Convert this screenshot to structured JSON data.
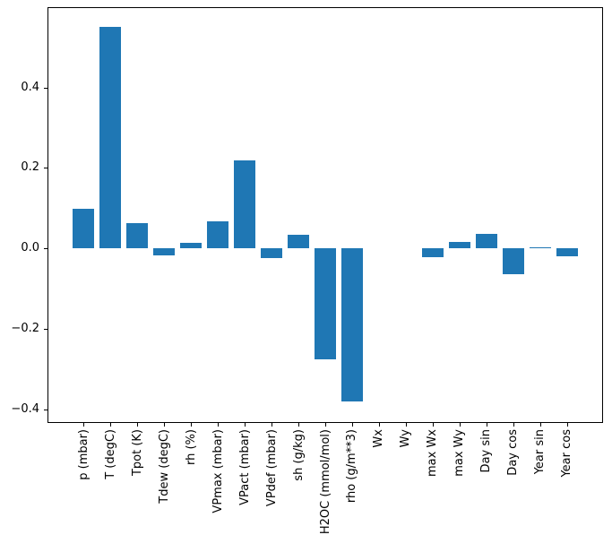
{
  "chart_data": {
    "type": "bar",
    "title": "",
    "xlabel": "",
    "ylabel": "",
    "categories": [
      "p (mbar)",
      "T (degC)",
      "Tpot (K)",
      "Tdew (degC)",
      "rh (%)",
      "VPmax (mbar)",
      "VPact (mbar)",
      "VPdef (mbar)",
      "sh (g/kg)",
      "H2OC (mmol/mol)",
      "rho (g/m**3)",
      "Wx",
      "Wy",
      "max Wx",
      "max Wy",
      "Day sin",
      "Day cos",
      "Year sin",
      "Year cos"
    ],
    "values": [
      0.098,
      0.551,
      0.063,
      -0.017,
      0.013,
      0.068,
      0.22,
      -0.024,
      0.033,
      -0.276,
      -0.381,
      0.0,
      0.0,
      -0.022,
      0.017,
      0.036,
      -0.064,
      0.001,
      -0.019
    ],
    "ylim": [
      -0.434,
      0.6
    ],
    "yticks": [
      0.4,
      0.2,
      0.0,
      -0.2,
      -0.4
    ],
    "ytick_labels": [
      "0.4",
      "0.2",
      "0.0",
      "−0.2",
      "−0.4"
    ],
    "bar_color": "#1f77b4",
    "bar_width_fraction": 0.8,
    "grid": false,
    "legend_position": "none",
    "background_color": "#ffffff",
    "spine_color": "#000000"
  }
}
